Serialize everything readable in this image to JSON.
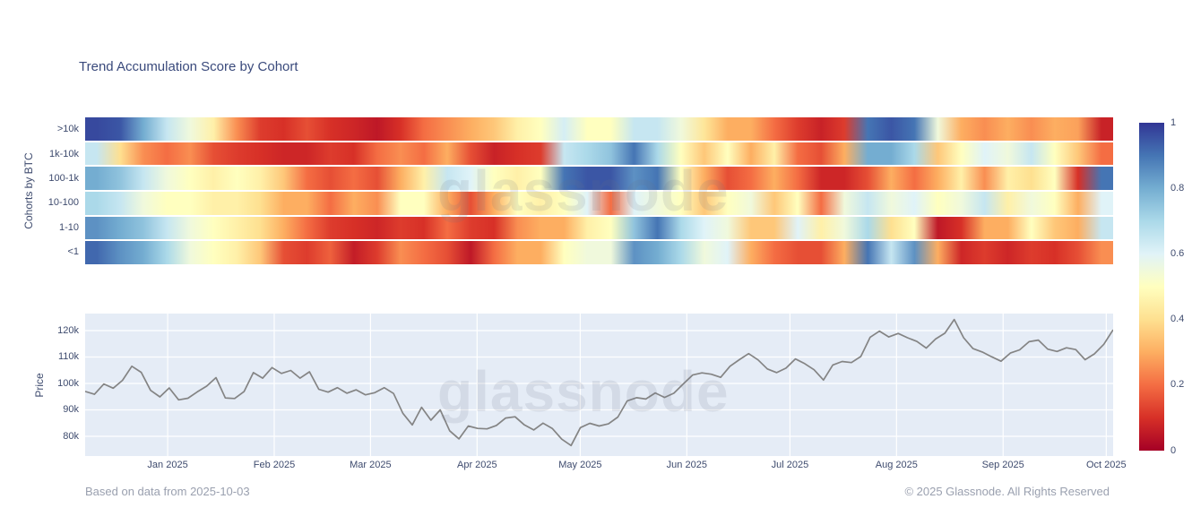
{
  "title": "Trend Accumulation Score by Cohort",
  "watermark": "glassnode",
  "footer": {
    "left": "Based on data from 2025-10-03",
    "right": "© 2025 Glassnode. All Rights Reserved"
  },
  "colors": {
    "plot_bg": "#e5ecf6",
    "grid": "#ffffff",
    "price_line": "#848484",
    "title_text": "#3a4a7c",
    "axis_text": "#3e4b6e",
    "footer_text": "#9aa0af"
  },
  "chart_data": [
    {
      "type": "heatmap",
      "title": "Trend Accumulation Score by Cohort",
      "ylabel": "Cohorts by BTC",
      "rows": [
        ">10k",
        "1k-10k",
        "100-1k",
        "10-100",
        "1-10",
        "<1"
      ],
      "x_range": [
        "2024-12-08",
        "2025-10-03"
      ],
      "zmin": 0,
      "zmax": 1,
      "colorscale": "RdYlBu",
      "colorscale_stops": [
        "#a50026",
        "#d73027",
        "#f46d43",
        "#fdae61",
        "#fee090",
        "#ffffbf",
        "#e0f3f8",
        "#abd9e9",
        "#74add1",
        "#4575b4",
        "#313695"
      ],
      "colorbar_ticks": [
        "1",
        "0.8",
        "0.6",
        "0.4",
        "0.2",
        "0"
      ],
      "values": [
        [
          0.97,
          0.95,
          0.8,
          0.65,
          0.55,
          0.45,
          0.25,
          0.12,
          0.1,
          0.15,
          0.1,
          0.08,
          0.05,
          0.1,
          0.2,
          0.25,
          0.3,
          0.35,
          0.45,
          0.5,
          0.62,
          0.5,
          0.5,
          0.65,
          0.65,
          0.55,
          0.42,
          0.3,
          0.3,
          0.2,
          0.12,
          0.07,
          0.12,
          0.9,
          0.95,
          0.9,
          0.55,
          0.3,
          0.25,
          0.3,
          0.25,
          0.3,
          0.28,
          0.07
        ],
        [
          0.65,
          0.4,
          0.25,
          0.2,
          0.25,
          0.15,
          0.12,
          0.1,
          0.08,
          0.08,
          0.12,
          0.1,
          0.2,
          0.25,
          0.2,
          0.3,
          0.15,
          0.07,
          0.1,
          0.12,
          0.65,
          0.7,
          0.75,
          0.9,
          0.7,
          0.5,
          0.35,
          0.5,
          0.3,
          0.45,
          0.2,
          0.15,
          0.3,
          0.8,
          0.8,
          0.7,
          0.35,
          0.5,
          0.6,
          0.55,
          0.65,
          0.5,
          0.35,
          0.2
        ],
        [
          0.8,
          0.75,
          0.65,
          0.55,
          0.5,
          0.45,
          0.5,
          0.45,
          0.35,
          0.2,
          0.15,
          0.2,
          0.15,
          0.3,
          0.45,
          0.65,
          0.6,
          0.5,
          0.45,
          0.5,
          0.9,
          0.95,
          0.95,
          0.85,
          0.9,
          0.5,
          0.3,
          0.15,
          0.2,
          0.3,
          0.2,
          0.08,
          0.08,
          0.15,
          0.3,
          0.2,
          0.3,
          0.45,
          0.25,
          0.45,
          0.4,
          0.5,
          0.1,
          0.9
        ],
        [
          0.7,
          0.65,
          0.55,
          0.5,
          0.5,
          0.45,
          0.45,
          0.4,
          0.3,
          0.3,
          0.2,
          0.3,
          0.25,
          0.5,
          0.5,
          0.3,
          0.15,
          0.3,
          0.5,
          0.45,
          0.5,
          0.6,
          0.2,
          0.6,
          0.55,
          0.5,
          0.35,
          0.5,
          0.55,
          0.35,
          0.5,
          0.2,
          0.55,
          0.65,
          0.55,
          0.6,
          0.5,
          0.55,
          0.65,
          0.45,
          0.55,
          0.5,
          0.3,
          0.6
        ],
        [
          0.85,
          0.8,
          0.75,
          0.65,
          0.55,
          0.5,
          0.45,
          0.4,
          0.3,
          0.2,
          0.12,
          0.1,
          0.08,
          0.12,
          0.1,
          0.2,
          0.12,
          0.1,
          0.25,
          0.3,
          0.3,
          0.45,
          0.5,
          0.75,
          0.9,
          0.7,
          0.6,
          0.55,
          0.35,
          0.35,
          0.6,
          0.45,
          0.55,
          0.7,
          0.4,
          0.5,
          0.05,
          0.1,
          0.3,
          0.3,
          0.5,
          0.35,
          0.3,
          0.65
        ],
        [
          0.92,
          0.85,
          0.8,
          0.7,
          0.55,
          0.5,
          0.45,
          0.35,
          0.15,
          0.12,
          0.18,
          0.06,
          0.12,
          0.25,
          0.2,
          0.15,
          0.05,
          0.2,
          0.3,
          0.3,
          0.5,
          0.55,
          0.55,
          0.85,
          0.8,
          0.7,
          0.55,
          0.6,
          0.3,
          0.2,
          0.15,
          0.15,
          0.3,
          0.9,
          0.65,
          0.85,
          0.3,
          0.08,
          0.12,
          0.08,
          0.12,
          0.1,
          0.15,
          0.25
        ]
      ]
    },
    {
      "type": "line",
      "ylabel": "Price",
      "yticks": [
        {
          "label": "120k",
          "value": 120
        },
        {
          "label": "110k",
          "value": 110
        },
        {
          "label": "100k",
          "value": 100
        },
        {
          "label": "90k",
          "value": 90
        },
        {
          "label": "80k",
          "value": 80
        }
      ],
      "ylim_k": [
        72.5,
        126.4
      ],
      "x_total_days": 299,
      "x_ticks": [
        {
          "label": "Jan 2025",
          "day": 24
        },
        {
          "label": "Feb 2025",
          "day": 55
        },
        {
          "label": "Mar 2025",
          "day": 83
        },
        {
          "label": "Apr 2025",
          "day": 114
        },
        {
          "label": "May 2025",
          "day": 144
        },
        {
          "label": "Jun 2025",
          "day": 175
        },
        {
          "label": "Jul 2025",
          "day": 205
        },
        {
          "label": "Aug 2025",
          "day": 236
        },
        {
          "label": "Sep 2025",
          "day": 267
        },
        {
          "label": "Oct 2025",
          "day": 297
        }
      ],
      "values_k": [
        97.0,
        95.9,
        99.8,
        98.2,
        101.2,
        106.5,
        104.2,
        97.4,
        94.9,
        98.3,
        93.8,
        94.4,
        96.8,
        99.0,
        102.2,
        94.5,
        94.3,
        96.9,
        104.1,
        102.0,
        106.0,
        103.8,
        104.9,
        102.0,
        104.4,
        97.8,
        96.7,
        98.4,
        96.3,
        97.6,
        95.7,
        96.5,
        98.4,
        96.2,
        88.7,
        84.3,
        91.0,
        86.1,
        90.0,
        82.1,
        79.0,
        83.9,
        83.0,
        82.8,
        84.1,
        86.9,
        87.4,
        84.3,
        82.4,
        85.0,
        82.9,
        78.9,
        76.5,
        83.3,
        84.9,
        83.9,
        84.7,
        87.3,
        93.4,
        94.6,
        94.1,
        96.4,
        94.7,
        96.3,
        99.8,
        103.2,
        104.0,
        103.5,
        102.3,
        106.5,
        109.0,
        111.3,
        108.9,
        105.5,
        104.1,
        105.8,
        109.3,
        107.5,
        105.2,
        101.3,
        107.0,
        108.3,
        107.9,
        110.2,
        117.5,
        119.8,
        117.6,
        118.9,
        117.3,
        115.9,
        113.4,
        116.8,
        119.0,
        124.2,
        117.3,
        113.2,
        111.9,
        110.1,
        108.4,
        111.5,
        112.7,
        115.8,
        116.4,
        113.0,
        112.1,
        113.5,
        112.8,
        109.0,
        111.2,
        114.8,
        120.3
      ]
    }
  ]
}
